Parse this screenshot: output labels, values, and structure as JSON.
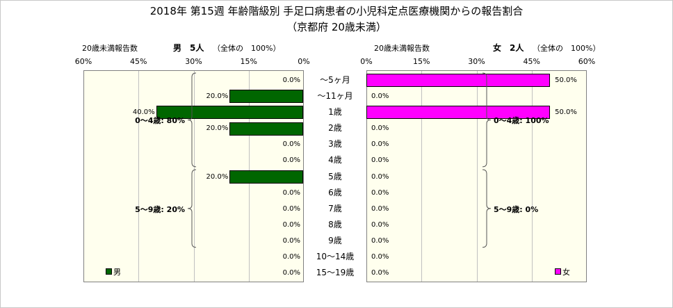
{
  "title_line1": "2018年 第15週 年齢階級別 手足口病患者の小児科定点医療機関からの報告割合",
  "title_line2": "（京都府 20歳未満）",
  "colors": {
    "male": "#006600",
    "female": "#ff00ff",
    "plot_bg": "#ffffee"
  },
  "categories": [
    "～5ヶ月",
    "～11ヶ月",
    "1歳",
    "2歳",
    "3歳",
    "4歳",
    "5歳",
    "6歳",
    "7歳",
    "8歳",
    "9歳",
    "10～14歳",
    "15～19歳"
  ],
  "chart_data": [
    {
      "type": "bar",
      "orientation": "horizontal-reversed",
      "header_label": "20歳未満報告数",
      "header_sex": "男",
      "header_count": "5人",
      "header_total": "（全体の　100%）",
      "xlim": [
        0,
        60
      ],
      "ticks": [
        "60%",
        "45%",
        "30%",
        "15%",
        "0%"
      ],
      "tick_values": [
        60,
        45,
        30,
        15,
        0
      ],
      "categories": [
        "～5ヶ月",
        "～11ヶ月",
        "1歳",
        "2歳",
        "3歳",
        "4歳",
        "5歳",
        "6歳",
        "7歳",
        "8歳",
        "9歳",
        "10～14歳",
        "15～19歳"
      ],
      "values": [
        0.0,
        20.0,
        40.0,
        20.0,
        0.0,
        0.0,
        20.0,
        0.0,
        0.0,
        0.0,
        0.0,
        0.0,
        0.0
      ],
      "labels": [
        "0.0%",
        "20.0%",
        "40.0%",
        "20.0%",
        "0.0%",
        "0.0%",
        "20.0%",
        "0.0%",
        "0.0%",
        "0.0%",
        "0.0%",
        "0.0%",
        "0.0%"
      ],
      "groups": [
        {
          "label": "0～4歳: 80%",
          "from": 0,
          "to": 5
        },
        {
          "label": "5～9歳: 20%",
          "from": 6,
          "to": 10
        }
      ],
      "legend": "男",
      "legend_position": "bottom-left",
      "grid": true
    },
    {
      "type": "bar",
      "orientation": "horizontal",
      "header_label": "20歳未満報告数",
      "header_sex": "女",
      "header_count": "2人",
      "header_total": "（全体の　100%）",
      "xlim": [
        0,
        60
      ],
      "ticks": [
        "0%",
        "15%",
        "30%",
        "45%",
        "60%"
      ],
      "tick_values": [
        0,
        15,
        30,
        45,
        60
      ],
      "categories": [
        "～5ヶ月",
        "～11ヶ月",
        "1歳",
        "2歳",
        "3歳",
        "4歳",
        "5歳",
        "6歳",
        "7歳",
        "8歳",
        "9歳",
        "10～14歳",
        "15～19歳"
      ],
      "values": [
        50.0,
        0.0,
        50.0,
        0.0,
        0.0,
        0.0,
        0.0,
        0.0,
        0.0,
        0.0,
        0.0,
        0.0,
        0.0
      ],
      "labels": [
        "50.0%",
        "0.0%",
        "50.0%",
        "0.0%",
        "0.0%",
        "0.0%",
        "0.0%",
        "0.0%",
        "0.0%",
        "0.0%",
        "0.0%",
        "0.0%",
        "0.0%"
      ],
      "groups": [
        {
          "label": "0～4歳: 100%",
          "from": 0,
          "to": 5
        },
        {
          "label": "5～9歳: 0%",
          "from": 6,
          "to": 10
        }
      ],
      "legend": "女",
      "legend_position": "bottom-right",
      "grid": true
    }
  ]
}
